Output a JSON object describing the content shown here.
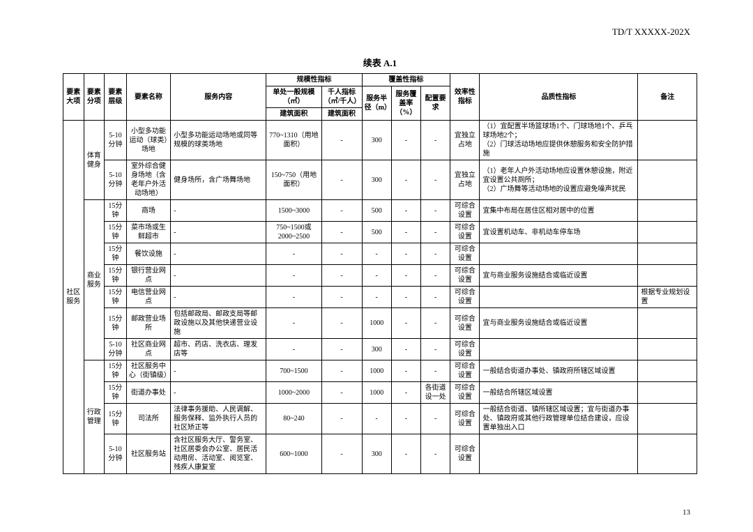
{
  "doc_id": "TD/T   XXXXX-202X",
  "table_title": "续表 A.1",
  "page_number": "13",
  "headers": {
    "h_major": "要素大项",
    "h_sub": "要素分项",
    "h_level": "要素层级",
    "h_name": "要素名称",
    "h_content": "服务内容",
    "h_scale_group": "规模性指标",
    "h_scale_single": "单处一般规模（㎡）",
    "h_scale_thousand": "千人指标（㎡/千人）",
    "h_cover_group": "覆盖性指标",
    "h_radius": "服务半径（m）",
    "h_rate": "服务覆盖率（%）",
    "h_config": "配置要求",
    "h_eff": "效率性指标",
    "h_quality": "品质性指标",
    "h_remark": "备注",
    "h_area1": "建筑面积",
    "h_area2": "建筑面积"
  },
  "major": "社区服务",
  "subs": {
    "sports": "体育健身",
    "business": "商业服务",
    "admin": "行政管理"
  },
  "rows": {
    "r1": {
      "lvl": "5-10分钟",
      "name": "小型多功能运动（球类）场地",
      "content": "小型多功能运动场地或同等规模的球类场地",
      "scale": "770~1310（用地面积）",
      "thousand": "-",
      "radius": "300",
      "rate": "-",
      "config": "-",
      "eff": "宜独立占地",
      "quality": "（1）宜配置半场篮球场1个、门球场地1个、乒乓球场地2个；\n（2）门球活动场地应提供休憩服务和安全防护措施",
      "remark": ""
    },
    "r2": {
      "lvl": "5-10分钟",
      "name": "室外综合健身场地（含老年户外活动场地）",
      "content": "健身场所，含广场舞场地",
      "scale": "150~750（用地面积）",
      "thousand": "-",
      "radius": "300",
      "rate": "-",
      "config": "-",
      "eff": "宜独立占地",
      "quality": "（1）老年人户外活动场地应设置休憩设施，附近宜设置公共厕所；\n（2）广场舞等活动场地的设置应避免噪声扰民",
      "remark": ""
    },
    "r3": {
      "lvl": "15分钟",
      "name": "商场",
      "content": "-",
      "scale": "1500~3000",
      "thousand": "-",
      "radius": "500",
      "rate": "-",
      "config": "-",
      "eff": "可综合设置",
      "quality": "宜集中布局在居住区相对居中的位置",
      "remark": ""
    },
    "r4": {
      "lvl": "15分钟",
      "name": "菜市场或生鲜超市",
      "content": "-",
      "scale": "750~1500或2000~2500",
      "thousand": "-",
      "radius": "500",
      "rate": "-",
      "config": "-",
      "eff": "可综合设置",
      "quality": "宜设置机动车、非机动车停车场",
      "remark": ""
    },
    "r5": {
      "lvl": "15分钟",
      "name": "餐饮设施",
      "content": "-",
      "scale": "-",
      "thousand": "-",
      "radius": "-",
      "rate": "-",
      "config": "-",
      "eff": "可综合设置",
      "quality": "",
      "remark": ""
    },
    "r6": {
      "lvl": "15分钟",
      "name": "银行营业网点",
      "content": "-",
      "scale": "-",
      "thousand": "-",
      "radius": "-",
      "rate": "-",
      "config": "-",
      "eff": "可综合设置",
      "quality": "宜与商业服务设施结合或临近设置",
      "remark": ""
    },
    "r7": {
      "lvl": "15分钟",
      "name": "电信营业网点",
      "content": "-",
      "scale": "-",
      "thousand": "-",
      "radius": "-",
      "rate": "-",
      "config": "-",
      "eff": "可综合设置",
      "quality": "",
      "remark": "根据专业规划设置"
    },
    "r8": {
      "lvl": "15分钟",
      "name": "邮政营业场所",
      "content": "包括邮政局、邮政支局等邮政设施以及其他快递营业设施",
      "scale": "-",
      "thousand": "-",
      "radius": "1000",
      "rate": "-",
      "config": "-",
      "eff": "可综合设置",
      "quality": "宜与商业服务设施结合或临近设置",
      "remark": ""
    },
    "r9": {
      "lvl": "5-10分钟",
      "name": "社区商业网点",
      "content": "超市、药店、洗衣店、理发店等",
      "scale": "-",
      "thousand": "-",
      "radius": "300",
      "rate": "-",
      "config": "-",
      "eff": "可综合设置",
      "quality": "",
      "remark": ""
    },
    "r10": {
      "lvl": "15分钟",
      "name": "社区服务中心（街镇级）",
      "content": "-",
      "scale": "700~1500",
      "thousand": "-",
      "radius": "1000",
      "rate": "-",
      "config": "-",
      "eff": "可综合设置",
      "quality": "一般结合街道办事处、镇政府所辖区域设置",
      "remark": ""
    },
    "r11": {
      "lvl": "15分钟",
      "name": "街道办事处",
      "content": "-",
      "scale": "1000~2000",
      "thousand": "-",
      "radius": "1000",
      "rate": "-",
      "config": "各街道设一处",
      "eff": "可综合设置",
      "quality": "一般结合所辖区域设置",
      "remark": ""
    },
    "r12": {
      "lvl": "15分钟",
      "name": "司法所",
      "content": "法律事务援助、人民调解、服务保释、监外执行人员的社区矫正等",
      "scale": "80~240",
      "thousand": "-",
      "radius": "-",
      "rate": "-",
      "config": "-",
      "eff": "可综合设置",
      "quality": "一般结合街道、镇所辖区域设置；宜与街道办事处、镇政府或其他行政管理单位结合建设，应设置单独出入口",
      "remark": ""
    },
    "r13": {
      "lvl": "5-10分钟",
      "name": "社区服务站",
      "content": "含社区服务大厅、警务室、社区居委会办公室、居民活动用房、活动室、阅览室、残疾人康复室",
      "scale": "600~1000",
      "thousand": "-",
      "radius": "300",
      "rate": "-",
      "config": "-",
      "eff": "可综合设置",
      "quality": "",
      "remark": ""
    }
  }
}
